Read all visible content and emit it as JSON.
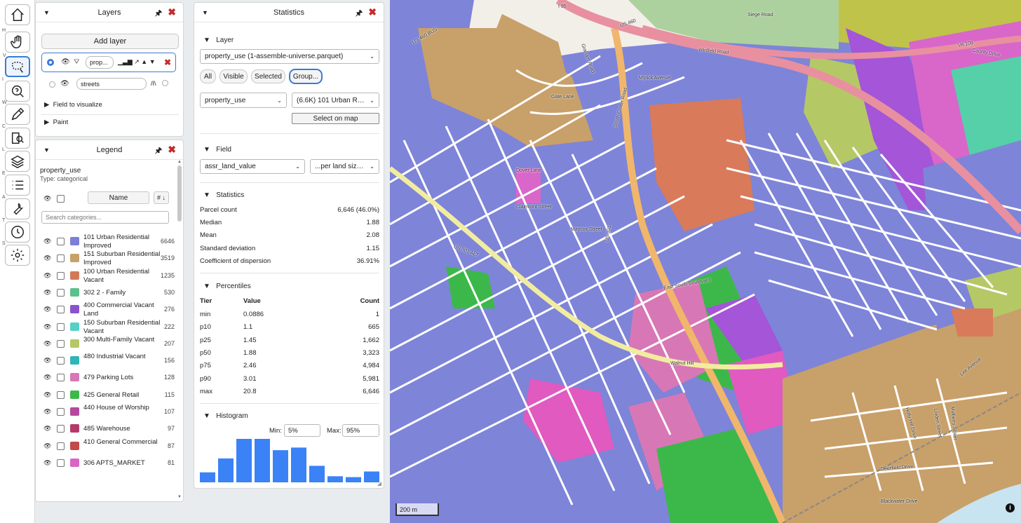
{
  "toolbar": {
    "items": [
      {
        "key": "",
        "icon": "home-icon"
      },
      {
        "key": "H",
        "icon": "hand-icon"
      },
      {
        "key": "V",
        "icon": "lasso-select-icon"
      },
      {
        "key": "I",
        "icon": "identify-icon"
      },
      {
        "key": "W",
        "icon": "pencil-icon"
      },
      {
        "key": "C",
        "icon": "compare-icon"
      },
      {
        "key": "L",
        "icon": "layers-icon"
      },
      {
        "key": "E",
        "icon": "list-icon"
      },
      {
        "key": "A",
        "icon": "wrench-icon"
      },
      {
        "key": "T",
        "icon": "clock-icon"
      },
      {
        "key": "S",
        "icon": "gear-icon"
      }
    ]
  },
  "layers_panel": {
    "title": "Layers",
    "add_layer": "Add layer",
    "layer1": {
      "name": "prop...",
      "icons": "▁▃▆ ↗ ▲ ▼"
    },
    "layer2": {
      "name": "streets",
      "icons": "/I\\"
    },
    "field_to_visualize": "Field to visualize",
    "paint": "Paint"
  },
  "legend_panel": {
    "title": "Legend",
    "field": "property_use",
    "type": "Type: categorical",
    "name_header": "Name",
    "sort_label": "# ↓",
    "search_placeholder": "Search categories...",
    "items": [
      {
        "name": "101 Urban Residential Improved",
        "count": "6646",
        "color": "#7b7fd6"
      },
      {
        "name": "151 Suburban Residential Improved",
        "count": "3519",
        "color": "#c8a06a"
      },
      {
        "name": "100 Urban Residential Vacant",
        "count": "1235",
        "color": "#d07a58"
      },
      {
        "name": "302 2 - Family",
        "count": "530",
        "color": "#5cc08c"
      },
      {
        "name": "400 Commercial Vacant Land",
        "count": "276",
        "color": "#8a52cf"
      },
      {
        "name": "150 Suburban Residential Vacant",
        "count": "222",
        "color": "#55d0c8"
      },
      {
        "name": "300 Multi-Family Vacant",
        "count": "207",
        "color": "#b5c866"
      },
      {
        "name": "480 Industrial Vacant",
        "count": "156",
        "color": "#2fb5b5"
      },
      {
        "name": "479 Parking Lots",
        "count": "128",
        "color": "#d877b5"
      },
      {
        "name": "425 General Retail",
        "count": "115",
        "color": "#3cb84a"
      },
      {
        "name": "440 House of Worship",
        "count": "107",
        "color": "#b5489d"
      },
      {
        "name": "485 Warehouse",
        "count": "97",
        "color": "#b53a6a"
      },
      {
        "name": "410 General Commercial",
        "count": "87",
        "color": "#c24a4a"
      },
      {
        "name": "306 APTS_MARKET",
        "count": "81",
        "color": "#d865c6"
      }
    ]
  },
  "stats_panel": {
    "title": "Statistics",
    "layer_section": "Layer",
    "layer_select": "property_use (1-assemble-universe.parquet)",
    "filter_buttons": [
      "All",
      "Visible",
      "Selected",
      "Group..."
    ],
    "group_field": "property_use",
    "group_value": "(6.6K) 101 Urban Resid",
    "select_on_map": "Select on map",
    "field_section": "Field",
    "field_select": "assr_land_value",
    "field_norm": "...per land size sc",
    "statistics_section": "Statistics",
    "stats": [
      {
        "label": "Parcel count",
        "value": "6,646 (46.0%)"
      },
      {
        "label": "Median",
        "value": "1.88"
      },
      {
        "label": "Mean",
        "value": "2.08"
      },
      {
        "label": "Standard deviation",
        "value": "1.15"
      },
      {
        "label": "Coefficient of dispersion",
        "value": "36.91%"
      }
    ],
    "percentiles_section": "Percentiles",
    "perc_headers": [
      "Tier",
      "Value",
      "Count"
    ],
    "percentiles": [
      {
        "tier": "min",
        "value": "0.0886",
        "count": "1"
      },
      {
        "tier": "p10",
        "value": "1.1",
        "count": "665"
      },
      {
        "tier": "p25",
        "value": "1.45",
        "count": "1,662"
      },
      {
        "tier": "p50",
        "value": "1.88",
        "count": "3,323"
      },
      {
        "tier": "p75",
        "value": "2.46",
        "count": "4,984"
      },
      {
        "tier": "p90",
        "value": "3.01",
        "count": "5,981"
      },
      {
        "tier": "max",
        "value": "20.8",
        "count": "6,646"
      }
    ],
    "histogram_section": "Histogram",
    "min_label": "Min:",
    "min_value": "5%",
    "max_label": "Max:",
    "max_value": "95%",
    "histogram_bars": [
      0.23,
      0.55,
      1.0,
      1.0,
      0.74,
      0.8,
      0.38,
      0.14,
      0.12,
      0.25
    ],
    "bar_color": "#3b82f6"
  },
  "map": {
    "scale": "200 m",
    "info_icon": "info-icon",
    "street_labels": [
      "I 95",
      "US 460 BUS",
      "US 460",
      "Siege Road",
      "Winfield Road",
      "VA 109",
      "County Drive",
      "Graham Road",
      "South Crater Road",
      "Myrick Avenue",
      "Gate Lane",
      "Dover Lane",
      "Clairmont Street",
      "Maycox Street",
      "East South Boulevard",
      "US 301 ALT",
      "Walnut Hill",
      "Deerfield Drive",
      "Blackwater Drive",
      "Holly Hill Drive",
      "Linden Street",
      "Lee Avenue",
      "Mulberry Street",
      "US 301"
    ]
  }
}
